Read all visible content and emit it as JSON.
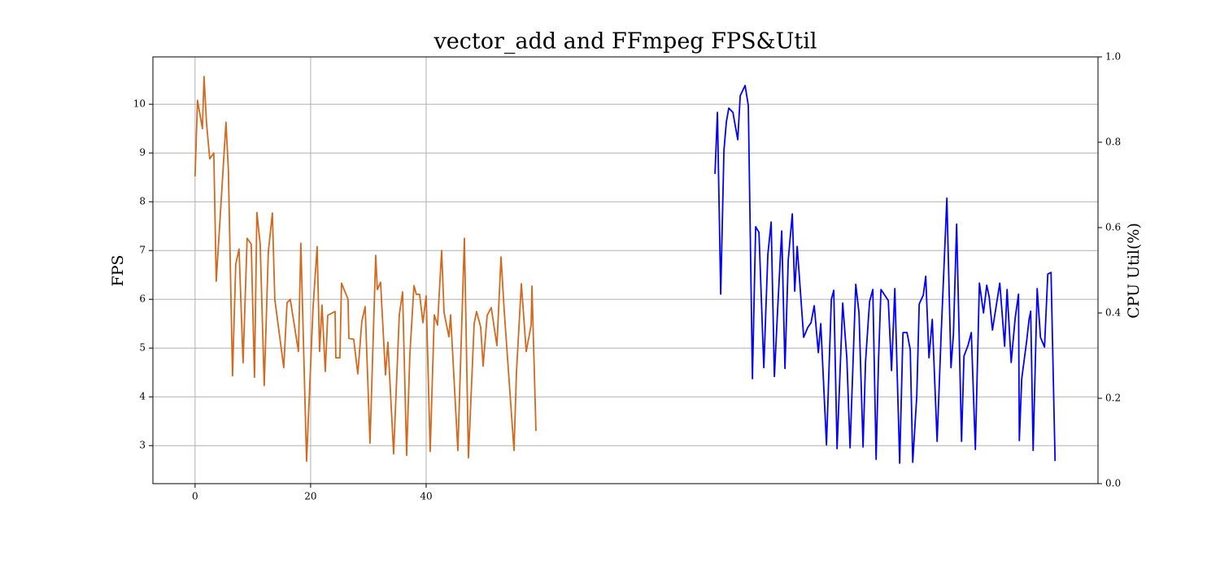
{
  "chart_data": {
    "type": "line",
    "title": "vector_add and FFmpeg FPS&Util",
    "y_label": "FPS",
    "y2_label": "CPU Util(%)",
    "grid": true,
    "xlim": [
      -7.3,
      156.3
    ],
    "xticks": [
      0,
      20,
      40
    ],
    "ylim": [
      2.22,
      10.97
    ],
    "yticks": [
      3,
      4,
      5,
      6,
      7,
      8,
      9,
      10
    ],
    "y2lim": [
      0,
      1
    ],
    "y2ticks": [
      {
        "value": 0,
        "label": "0.0"
      },
      0.2,
      0.4,
      0.6,
      0.8,
      {
        "value": 1,
        "label": "1.0"
      }
    ],
    "series": [
      {
        "color": "#d2691e",
        "axis": "y",
        "x": [
          0,
          0.42,
          1.27,
          1.55,
          1.97,
          2.54,
          3.24,
          3.66,
          4.79,
          5.35,
          5.77,
          6.48,
          7.04,
          7.61,
          8.31,
          9.01,
          9.72,
          10.28,
          10.7,
          11.27,
          11.97,
          12.68,
          13.38,
          13.8,
          15.35,
          15.92,
          16.48,
          17.89,
          18.31,
          19.3,
          20.42,
          21.13,
          21.55,
          21.97,
          22.54,
          22.96,
          24.23,
          24.37,
          25.07,
          25.35,
          26.48,
          26.62,
          27.46,
          28.17,
          28.87,
          29.44,
          30.28,
          31.27,
          31.55,
          32.11,
          32.96,
          33.38,
          34.37,
          35.35,
          35.92,
          36.62,
          37.18,
          37.89,
          38.31,
          38.87,
          39.44,
          40,
          40.7,
          41.41,
          41.97,
          42.68,
          43.1,
          43.94,
          44.23,
          45.49,
          46.62,
          47.32,
          48.31,
          48.73,
          49.44,
          49.86,
          50.56,
          51.27,
          52.25,
          52.96,
          53.52,
          55.21,
          55.63,
          56.48,
          57.32,
          58.17,
          58.31,
          59.01
        ],
        "values": [
          8.52,
          10.08,
          9.5,
          10.57,
          9.63,
          8.88,
          9.0,
          6.37,
          8.55,
          9.63,
          8.63,
          4.43,
          6.72,
          7.03,
          4.7,
          7.25,
          7.13,
          4.4,
          7.78,
          7.13,
          4.23,
          6.97,
          7.77,
          6.0,
          4.6,
          5.93,
          6.0,
          4.93,
          7.15,
          2.68,
          5.83,
          7.08,
          4.93,
          5.88,
          4.52,
          5.67,
          5.75,
          4.8,
          4.8,
          6.33,
          6.0,
          5.2,
          5.18,
          4.47,
          5.55,
          5.85,
          3.05,
          6.9,
          6.2,
          6.35,
          4.45,
          5.12,
          2.83,
          5.68,
          6.15,
          2.8,
          4.87,
          6.28,
          6.1,
          6.1,
          5.52,
          6.07,
          2.88,
          5.68,
          5.47,
          7.0,
          5.73,
          5.23,
          5.68,
          2.9,
          7.25,
          2.75,
          5.5,
          5.75,
          5.43,
          4.63,
          5.67,
          5.83,
          5.05,
          6.87,
          5.75,
          2.9,
          4.5,
          6.32,
          4.93,
          5.47,
          6.27,
          3.3
        ]
      },
      {
        "color": "#0000ff",
        "axis": "y2",
        "x": [
          90.0,
          90.42,
          90.99,
          91.55,
          91.97,
          92.39,
          93.1,
          93.94,
          94.37,
          95.21,
          95.77,
          96.48,
          97.04,
          97.61,
          98.45,
          99.15,
          99.72,
          100.28,
          100.85,
          101.55,
          102.11,
          102.68,
          103.38,
          103.8,
          104.23,
          105.35,
          106.06,
          106.62,
          107.18,
          107.89,
          108.31,
          109.3,
          110.14,
          110.56,
          111.13,
          112.11,
          112.82,
          113.38,
          114.37,
          114.93,
          115.63,
          116.06,
          116.76,
          117.32,
          117.89,
          118.31,
          118.73,
          120.0,
          120.56,
          121.13,
          121.97,
          122.54,
          123.24,
          123.8,
          124.23,
          124.93,
          125.35,
          126.06,
          126.48,
          127.04,
          127.61,
          128.45,
          129.15,
          130.14,
          130.85,
          131.27,
          131.83,
          132.68,
          133.1,
          133.8,
          134.37,
          135.07,
          135.77,
          136.48,
          137.04,
          137.46,
          138.03,
          139.3,
          140.14,
          140.56,
          141.27,
          141.97,
          142.54,
          142.68,
          143.1,
          143.94,
          144.37,
          144.65,
          145.07,
          145.77,
          146.34,
          147.04,
          147.61,
          148.17,
          148.87
        ],
        "values": [
          0.726,
          0.87,
          0.444,
          0.781,
          0.848,
          0.88,
          0.87,
          0.806,
          0.909,
          0.933,
          0.886,
          0.246,
          0.602,
          0.589,
          0.272,
          0.537,
          0.613,
          0.251,
          0.41,
          0.592,
          0.27,
          0.524,
          0.632,
          0.451,
          0.556,
          0.343,
          0.366,
          0.377,
          0.417,
          0.307,
          0.375,
          0.091,
          0.432,
          0.453,
          0.082,
          0.423,
          0.295,
          0.084,
          0.467,
          0.4,
          0.086,
          0.286,
          0.427,
          0.455,
          0.057,
          0.29,
          0.455,
          0.429,
          0.265,
          0.457,
          0.048,
          0.354,
          0.354,
          0.314,
          0.05,
          0.206,
          0.421,
          0.442,
          0.486,
          0.295,
          0.385,
          0.099,
          0.35,
          0.669,
          0.272,
          0.349,
          0.608,
          0.099,
          0.299,
          0.324,
          0.354,
          0.08,
          0.47,
          0.4,
          0.465,
          0.438,
          0.36,
          0.47,
          0.322,
          0.455,
          0.284,
          0.389,
          0.444,
          0.101,
          0.246,
          0.333,
          0.385,
          0.404,
          0.078,
          0.457,
          0.343,
          0.32,
          0.491,
          0.495,
          0.053
        ]
      }
    ]
  }
}
